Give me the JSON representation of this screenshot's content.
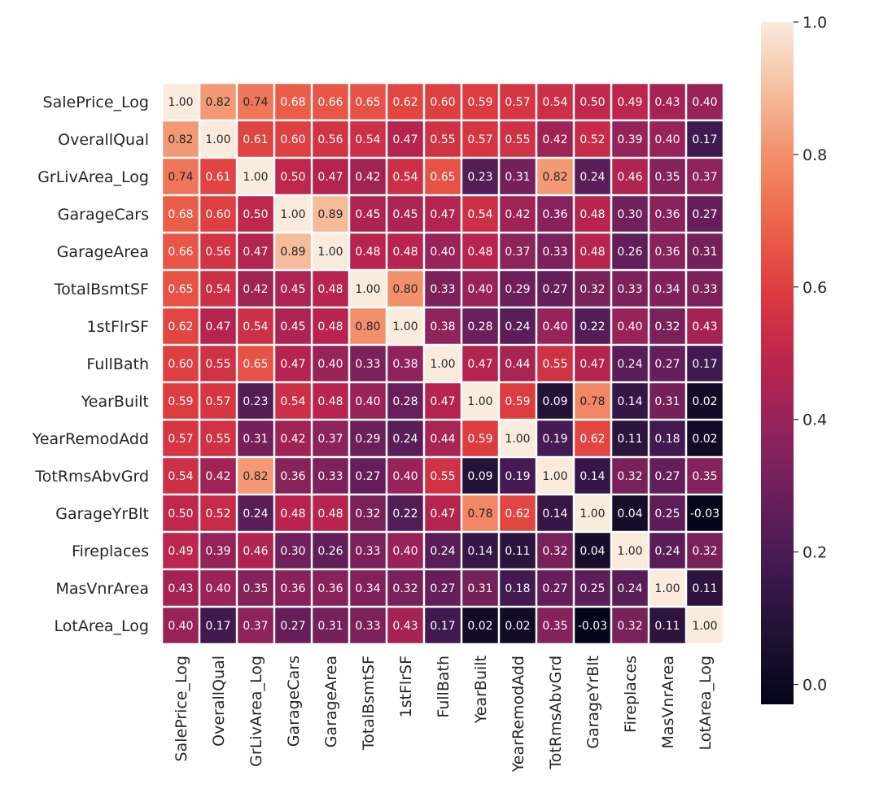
{
  "chart_data": {
    "type": "heatmap",
    "title": "",
    "xlabel": "",
    "ylabel": "",
    "labels": [
      "SalePrice_Log",
      "OverallQual",
      "GrLivArea_Log",
      "GarageCars",
      "GarageArea",
      "TotalBsmtSF",
      "1stFlrSF",
      "FullBath",
      "YearBuilt",
      "YearRemodAdd",
      "TotRmsAbvGrd",
      "GarageYrBlt",
      "Fireplaces",
      "MasVnrArea",
      "LotArea_Log"
    ],
    "matrix": [
      [
        1.0,
        0.82,
        0.74,
        0.68,
        0.66,
        0.65,
        0.62,
        0.6,
        0.59,
        0.57,
        0.54,
        0.5,
        0.49,
        0.43,
        0.4
      ],
      [
        0.82,
        1.0,
        0.61,
        0.6,
        0.56,
        0.54,
        0.47,
        0.55,
        0.57,
        0.55,
        0.42,
        0.52,
        0.39,
        0.4,
        0.17
      ],
      [
        0.74,
        0.61,
        1.0,
        0.5,
        0.47,
        0.42,
        0.54,
        0.65,
        0.23,
        0.31,
        0.82,
        0.24,
        0.46,
        0.35,
        0.37
      ],
      [
        0.68,
        0.6,
        0.5,
        1.0,
        0.89,
        0.45,
        0.45,
        0.47,
        0.54,
        0.42,
        0.36,
        0.48,
        0.3,
        0.36,
        0.27
      ],
      [
        0.66,
        0.56,
        0.47,
        0.89,
        1.0,
        0.48,
        0.48,
        0.4,
        0.48,
        0.37,
        0.33,
        0.48,
        0.26,
        0.36,
        0.31
      ],
      [
        0.65,
        0.54,
        0.42,
        0.45,
        0.48,
        1.0,
        0.8,
        0.33,
        0.4,
        0.29,
        0.27,
        0.32,
        0.33,
        0.34,
        0.33
      ],
      [
        0.62,
        0.47,
        0.54,
        0.45,
        0.48,
        0.8,
        1.0,
        0.38,
        0.28,
        0.24,
        0.4,
        0.22,
        0.4,
        0.32,
        0.43
      ],
      [
        0.6,
        0.55,
        0.65,
        0.47,
        0.4,
        0.33,
        0.38,
        1.0,
        0.47,
        0.44,
        0.55,
        0.47,
        0.24,
        0.27,
        0.17
      ],
      [
        0.59,
        0.57,
        0.23,
        0.54,
        0.48,
        0.4,
        0.28,
        0.47,
        1.0,
        0.59,
        0.09,
        0.78,
        0.14,
        0.31,
        0.02
      ],
      [
        0.57,
        0.55,
        0.31,
        0.42,
        0.37,
        0.29,
        0.24,
        0.44,
        0.59,
        1.0,
        0.19,
        0.62,
        0.11,
        0.18,
        0.02
      ],
      [
        0.54,
        0.42,
        0.82,
        0.36,
        0.33,
        0.27,
        0.4,
        0.55,
        0.09,
        0.19,
        1.0,
        0.14,
        0.32,
        0.27,
        0.35
      ],
      [
        0.5,
        0.52,
        0.24,
        0.48,
        0.48,
        0.32,
        0.22,
        0.47,
        0.78,
        0.62,
        0.14,
        1.0,
        0.04,
        0.25,
        -0.03
      ],
      [
        0.49,
        0.39,
        0.46,
        0.3,
        0.26,
        0.33,
        0.4,
        0.24,
        0.14,
        0.11,
        0.32,
        0.04,
        1.0,
        0.24,
        0.32
      ],
      [
        0.43,
        0.4,
        0.35,
        0.36,
        0.36,
        0.34,
        0.32,
        0.27,
        0.31,
        0.18,
        0.27,
        0.25,
        0.24,
        1.0,
        0.11
      ],
      [
        0.4,
        0.17,
        0.37,
        0.27,
        0.31,
        0.33,
        0.43,
        0.17,
        0.02,
        0.02,
        0.35,
        -0.03,
        0.32,
        0.11,
        1.0
      ]
    ],
    "annotation_format": "0.00",
    "colormap": "rocket",
    "colorbar": {
      "range": [
        -0.03,
        1.0
      ],
      "ticks": [
        0.0,
        0.2,
        0.4,
        0.6,
        0.8,
        1.0
      ],
      "tick_labels": [
        "0.0",
        "0.2",
        "0.4",
        "0.6",
        "0.8",
        "1.0"
      ],
      "placement": "right"
    },
    "grid": false,
    "cell_separator_color": "#ffffff",
    "legend": "colorbar-right"
  }
}
